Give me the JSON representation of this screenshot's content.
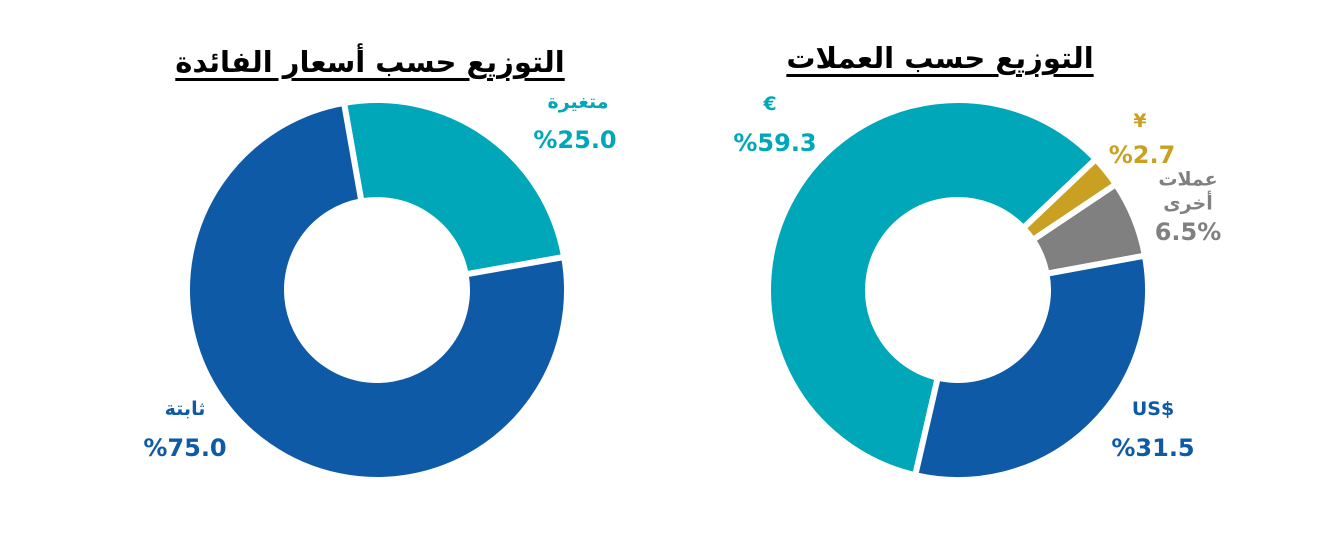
{
  "chart_data": [
    {
      "type": "donut",
      "title": "التوزيع حسب أسعار الفائدة",
      "categories": [
        "متغيرة",
        "ثابتة"
      ],
      "values": [
        25.0,
        75.0
      ],
      "value_labels": [
        "%25.0",
        "%75.0"
      ],
      "colors": [
        "#00a7b9",
        "#0f5aa6"
      ]
    },
    {
      "type": "donut",
      "title": "التوزيع حسب العملات",
      "categories": [
        "€",
        "¥",
        "عملات أخرى",
        "$US"
      ],
      "values": [
        59.3,
        2.7,
        6.5,
        31.5
      ],
      "value_labels": [
        "%59.3",
        "%2.7",
        "6.5%",
        "%31.5"
      ],
      "colors": [
        "#00a7b9",
        "#c9a021",
        "#808080",
        "#0f5aa6"
      ]
    }
  ]
}
